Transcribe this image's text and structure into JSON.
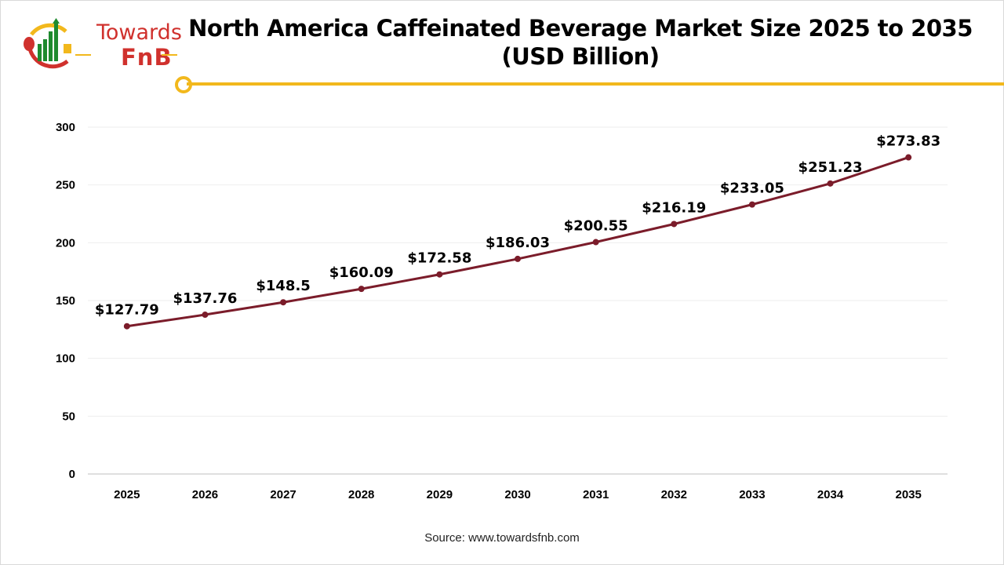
{
  "logo": {
    "line1": "Towards",
    "line2": "FnB"
  },
  "colors": {
    "line": "#7b1c2a",
    "accent": "#f2b81c",
    "brand_red": "#d0312d",
    "brand_green": "#1e8a2e"
  },
  "source": "Source: www.towardsfnb.com",
  "chart_data": {
    "type": "line",
    "title": "North America Caffeinated Beverage Market Size 2025 to 2035 (USD Billion)",
    "categories": [
      "2025",
      "2026",
      "2027",
      "2028",
      "2029",
      "2030",
      "2031",
      "2032",
      "2033",
      "2034",
      "2035"
    ],
    "values": [
      127.79,
      137.76,
      148.5,
      160.09,
      172.58,
      186.03,
      200.55,
      216.19,
      233.05,
      251.23,
      273.83
    ],
    "data_labels": [
      "$127.79",
      "$137.76",
      "$148.5",
      "$160.09",
      "$172.58",
      "$186.03",
      "$200.55",
      "$216.19",
      "$233.05",
      "$251.23",
      "$273.83"
    ],
    "ylim": [
      0,
      300
    ],
    "yticks": [
      0,
      50,
      100,
      150,
      200,
      250,
      300
    ],
    "grid": true,
    "xlabel": "",
    "ylabel": ""
  }
}
